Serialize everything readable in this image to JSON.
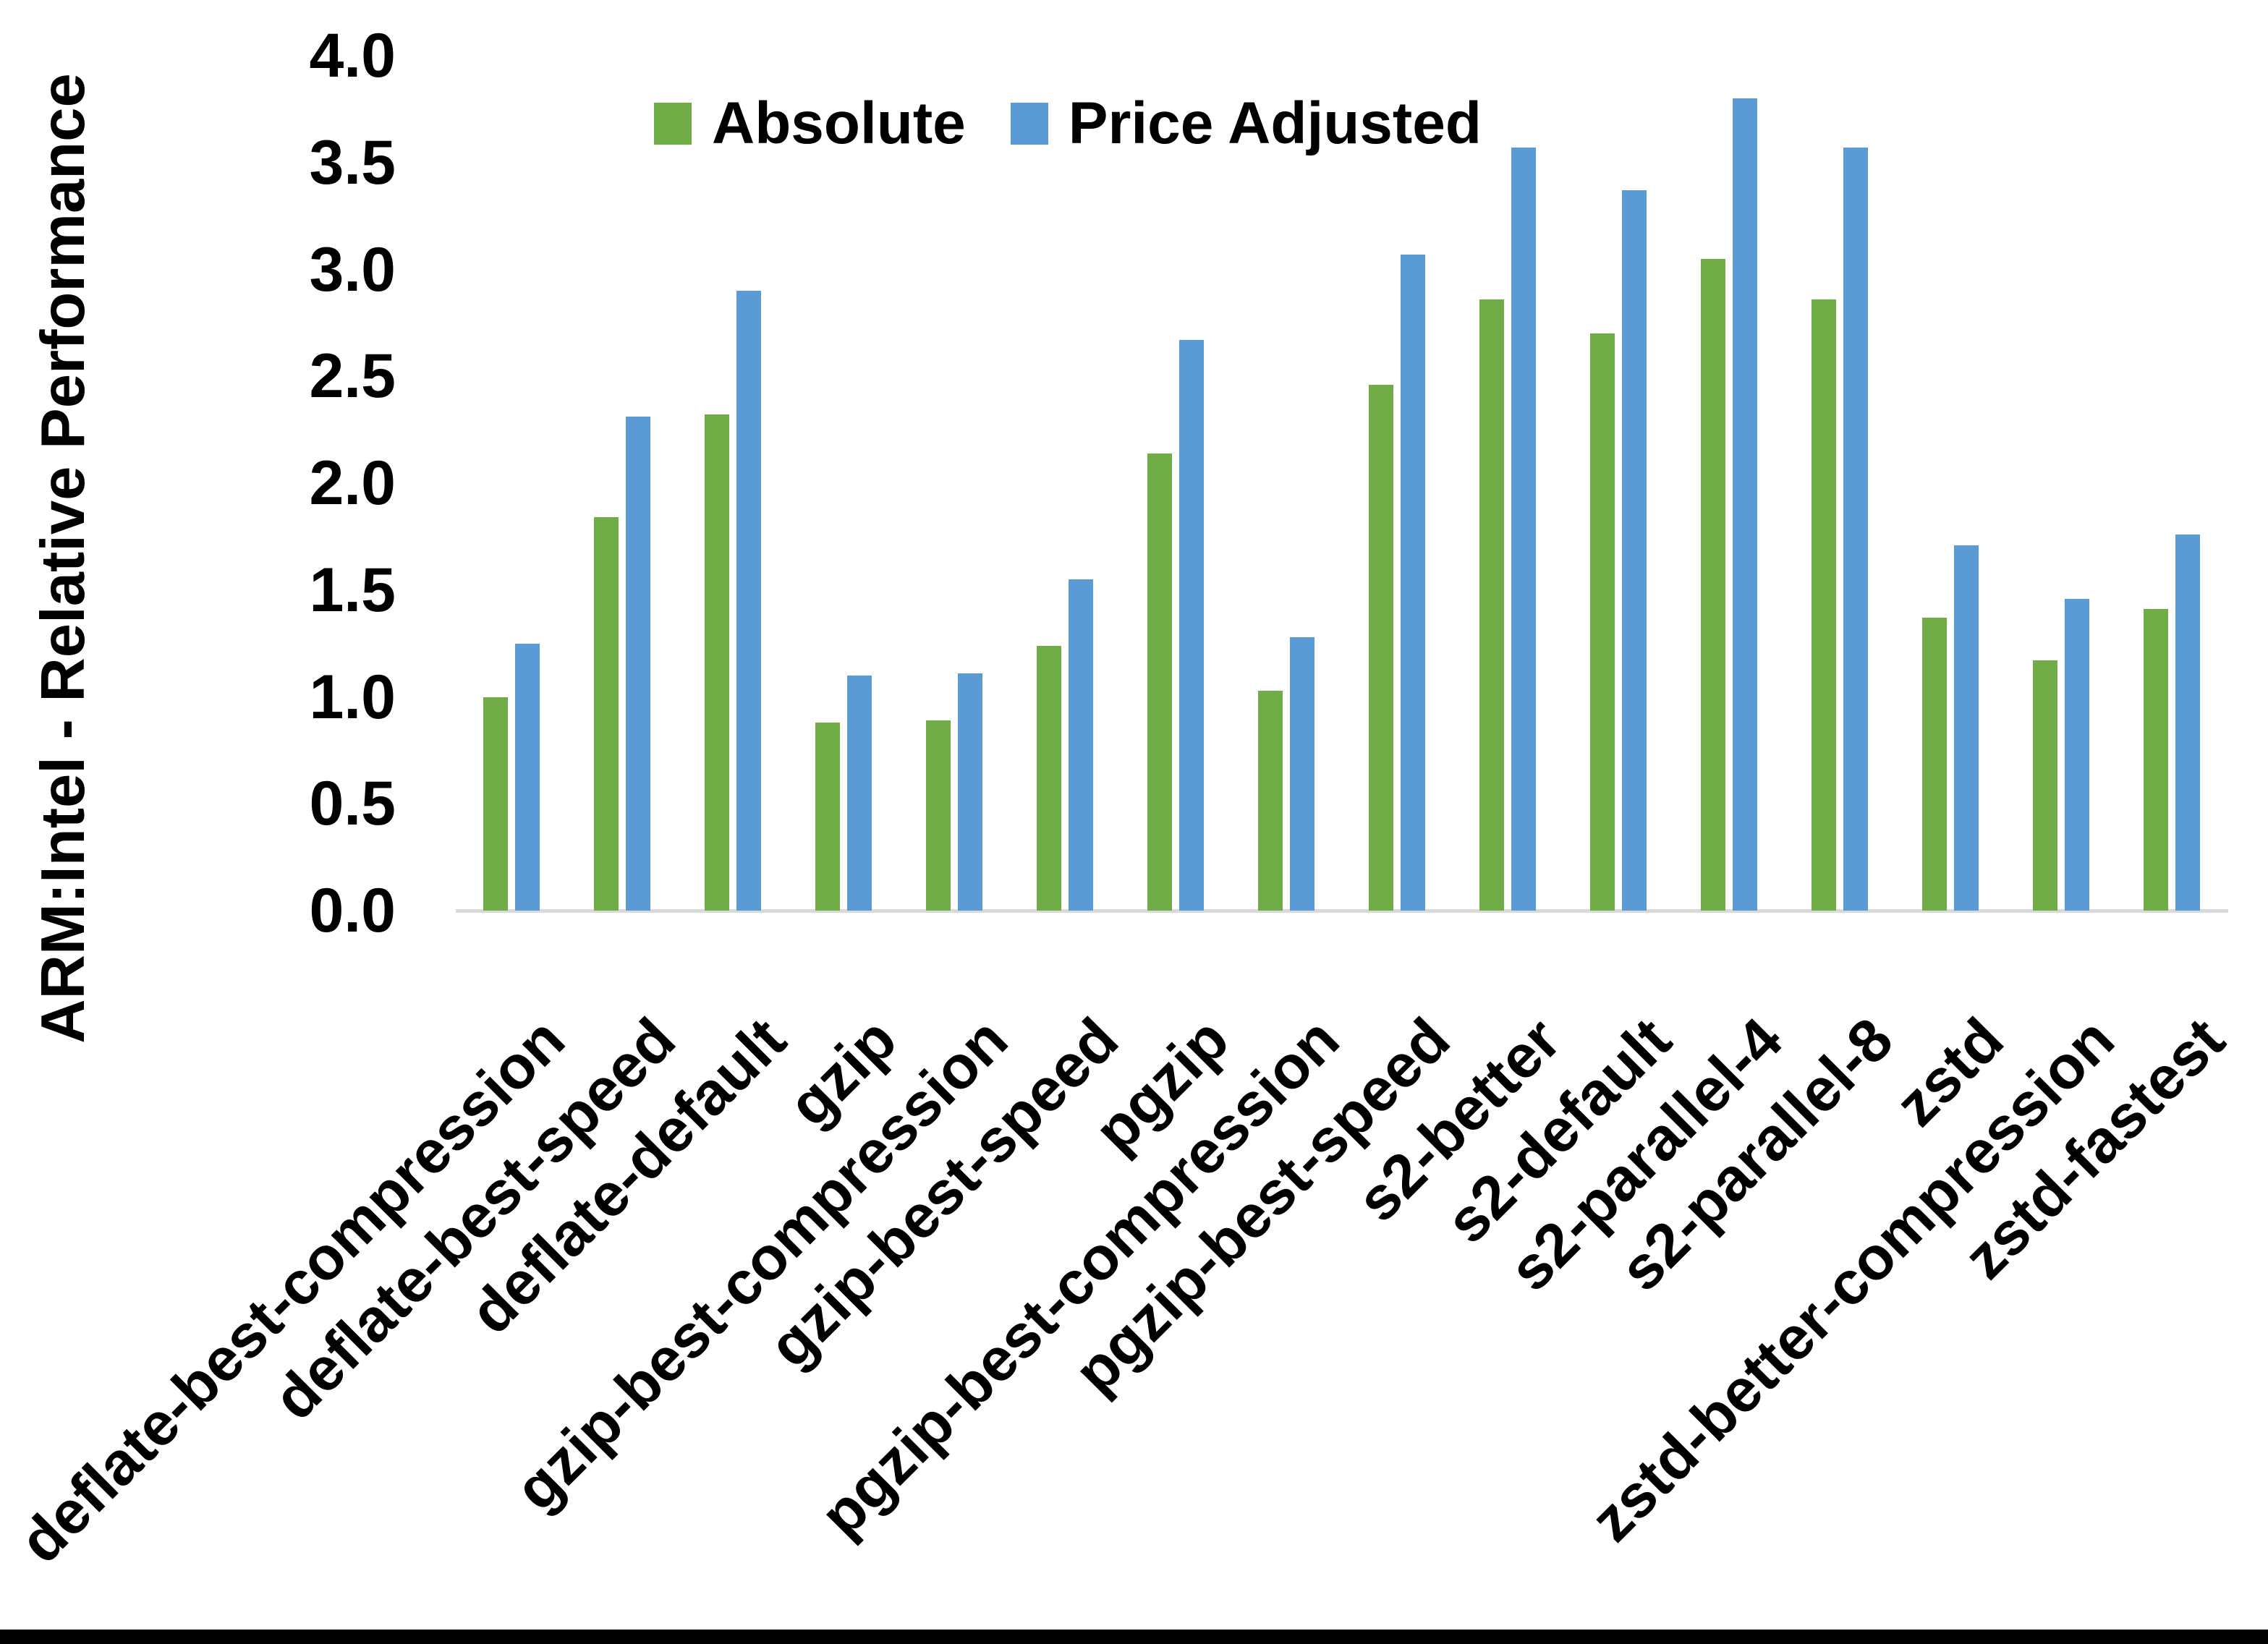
{
  "chart_data": {
    "type": "bar",
    "title": "",
    "xlabel": "",
    "ylabel": "ARM:Intel - Relative Performance",
    "ylim": [
      0.0,
      4.0
    ],
    "ytick_step": 0.5,
    "ytick_labels": [
      "0.0",
      "0.5",
      "1.0",
      "1.5",
      "2.0",
      "2.5",
      "3.0",
      "3.5",
      "4.0"
    ],
    "grid": false,
    "legend_position": "top",
    "categories": [
      "deflate-best-compression",
      "deflate-best-speed",
      "deflate-default",
      "gzip",
      "gzip-best-compression",
      "gzip-best-speed",
      "pgzip",
      "pgzip-best-compression",
      "pgzip-best-speed",
      "s2-better",
      "s2-default",
      "s2-parallel-4",
      "s2-parallel-8",
      "zstd",
      "zstd-better-compression",
      "zstd-fastest"
    ],
    "series": [
      {
        "name": "Absolute",
        "color": "#70AD47",
        "values": [
          1.0,
          1.84,
          2.32,
          0.88,
          0.89,
          1.24,
          2.14,
          1.03,
          2.46,
          2.86,
          2.7,
          3.05,
          2.86,
          1.37,
          1.17,
          1.41
        ]
      },
      {
        "name": "Price Adjusted",
        "color": "#5B9BD5",
        "values": [
          1.25,
          2.31,
          2.9,
          1.1,
          1.11,
          1.55,
          2.67,
          1.28,
          3.07,
          3.57,
          3.37,
          3.8,
          3.57,
          1.71,
          1.46,
          1.76
        ]
      }
    ],
    "axis_line_color": "#D9D9D9",
    "text_color": "#000000"
  }
}
